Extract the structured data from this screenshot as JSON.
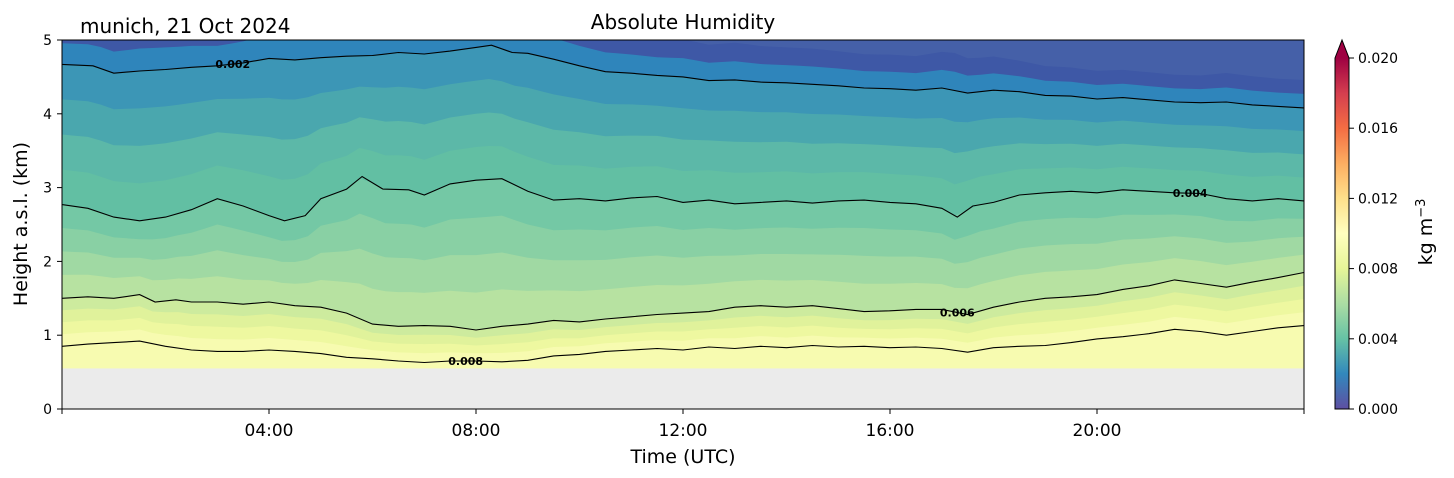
{
  "chart_data": {
    "type": "heatmap",
    "title": "Absolute Humidity",
    "subtitle": "munich, 21 Oct 2024",
    "xlabel": "Time (UTC)",
    "ylabel": "Height a.s.l. (km)",
    "xlim_hours": [
      0,
      24
    ],
    "ylim": [
      0,
      5
    ],
    "x_ticks": [
      {
        "hour": 4,
        "label": "04:00"
      },
      {
        "hour": 8,
        "label": "08:00"
      },
      {
        "hour": 12,
        "label": "12:00"
      },
      {
        "hour": 16,
        "label": "16:00"
      },
      {
        "hour": 20,
        "label": "20:00"
      }
    ],
    "y_ticks": [
      {
        "value": 0,
        "label": "0"
      },
      {
        "value": 1,
        "label": "1"
      },
      {
        "value": 2,
        "label": "2"
      },
      {
        "value": 3,
        "label": "3"
      },
      {
        "value": 4,
        "label": "4"
      },
      {
        "value": 5,
        "label": "5"
      }
    ],
    "no_data_below_km": 0.55,
    "colorbar": {
      "label": "kg m",
      "label_exponent": "−3",
      "range": [
        0.0,
        0.02
      ],
      "extend": "max",
      "ticks": [
        {
          "value": 0.0,
          "label": "0.000"
        },
        {
          "value": 0.004,
          "label": "0.004"
        },
        {
          "value": 0.008,
          "label": "0.008"
        },
        {
          "value": 0.012,
          "label": "0.012"
        },
        {
          "value": 0.016,
          "label": "0.016"
        },
        {
          "value": 0.02,
          "label": "0.020"
        }
      ]
    },
    "contours": [
      {
        "level": 0.002,
        "label": "0.002",
        "label_at_hour": 3.3,
        "points": [
          [
            0,
            4.67
          ],
          [
            0.6,
            4.65
          ],
          [
            1.0,
            4.55
          ],
          [
            1.5,
            4.58
          ],
          [
            2.0,
            4.6
          ],
          [
            2.5,
            4.63
          ],
          [
            3.0,
            4.65
          ],
          [
            3.5,
            4.69
          ],
          [
            4.0,
            4.75
          ],
          [
            4.5,
            4.73
          ],
          [
            5.0,
            4.76
          ],
          [
            5.5,
            4.78
          ],
          [
            6.0,
            4.79
          ],
          [
            6.5,
            4.83
          ],
          [
            7.0,
            4.81
          ],
          [
            7.5,
            4.85
          ],
          [
            8.0,
            4.9
          ],
          [
            8.3,
            4.93
          ],
          [
            8.7,
            4.83
          ],
          [
            9.0,
            4.82
          ],
          [
            9.5,
            4.74
          ],
          [
            10.0,
            4.65
          ],
          [
            10.5,
            4.57
          ],
          [
            11.0,
            4.55
          ],
          [
            11.5,
            4.52
          ],
          [
            12.0,
            4.5
          ],
          [
            12.5,
            4.45
          ],
          [
            13.0,
            4.46
          ],
          [
            13.5,
            4.43
          ],
          [
            14.0,
            4.42
          ],
          [
            14.5,
            4.4
          ],
          [
            15.0,
            4.38
          ],
          [
            15.5,
            4.35
          ],
          [
            16.0,
            4.34
          ],
          [
            16.5,
            4.32
          ],
          [
            17.0,
            4.35
          ],
          [
            17.5,
            4.28
          ],
          [
            18.0,
            4.32
          ],
          [
            18.5,
            4.3
          ],
          [
            19.0,
            4.25
          ],
          [
            19.5,
            4.24
          ],
          [
            20.0,
            4.2
          ],
          [
            20.5,
            4.22
          ],
          [
            21.0,
            4.19
          ],
          [
            21.5,
            4.16
          ],
          [
            22.0,
            4.15
          ],
          [
            22.5,
            4.16
          ],
          [
            23.0,
            4.12
          ],
          [
            23.5,
            4.1
          ],
          [
            24.0,
            4.08
          ]
        ]
      },
      {
        "level": 0.004,
        "label": "0.004",
        "label_at_hour": 21.8,
        "points": [
          [
            0,
            2.77
          ],
          [
            0.5,
            2.72
          ],
          [
            1.0,
            2.6
          ],
          [
            1.5,
            2.55
          ],
          [
            2.0,
            2.6
          ],
          [
            2.5,
            2.7
          ],
          [
            3.0,
            2.85
          ],
          [
            3.5,
            2.75
          ],
          [
            4.0,
            2.62
          ],
          [
            4.3,
            2.55
          ],
          [
            4.7,
            2.62
          ],
          [
            5.0,
            2.85
          ],
          [
            5.5,
            2.98
          ],
          [
            5.8,
            3.15
          ],
          [
            6.2,
            2.98
          ],
          [
            6.7,
            2.97
          ],
          [
            7.0,
            2.9
          ],
          [
            7.5,
            3.05
          ],
          [
            8.0,
            3.1
          ],
          [
            8.5,
            3.12
          ],
          [
            9.0,
            2.95
          ],
          [
            9.5,
            2.83
          ],
          [
            10.0,
            2.85
          ],
          [
            10.5,
            2.82
          ],
          [
            11.0,
            2.86
          ],
          [
            11.5,
            2.88
          ],
          [
            12.0,
            2.8
          ],
          [
            12.5,
            2.83
          ],
          [
            13.0,
            2.78
          ],
          [
            13.5,
            2.8
          ],
          [
            14.0,
            2.82
          ],
          [
            14.5,
            2.79
          ],
          [
            15.0,
            2.82
          ],
          [
            15.5,
            2.83
          ],
          [
            16.0,
            2.8
          ],
          [
            16.5,
            2.78
          ],
          [
            17.0,
            2.72
          ],
          [
            17.3,
            2.6
          ],
          [
            17.6,
            2.75
          ],
          [
            18.0,
            2.8
          ],
          [
            18.5,
            2.9
          ],
          [
            19.0,
            2.93
          ],
          [
            19.5,
            2.95
          ],
          [
            20.0,
            2.93
          ],
          [
            20.5,
            2.97
          ],
          [
            21.0,
            2.95
          ],
          [
            21.5,
            2.93
          ],
          [
            22.0,
            2.92
          ],
          [
            22.5,
            2.85
          ],
          [
            23.0,
            2.82
          ],
          [
            23.5,
            2.85
          ],
          [
            24.0,
            2.82
          ]
        ]
      },
      {
        "level": 0.006,
        "label": "0.006",
        "label_at_hour": 17.3,
        "points": [
          [
            0,
            1.5
          ],
          [
            0.5,
            1.52
          ],
          [
            1.0,
            1.5
          ],
          [
            1.5,
            1.55
          ],
          [
            1.8,
            1.45
          ],
          [
            2.2,
            1.48
          ],
          [
            2.5,
            1.45
          ],
          [
            3.0,
            1.45
          ],
          [
            3.5,
            1.42
          ],
          [
            4.0,
            1.45
          ],
          [
            4.5,
            1.4
          ],
          [
            5.0,
            1.38
          ],
          [
            5.5,
            1.3
          ],
          [
            6.0,
            1.15
          ],
          [
            6.5,
            1.12
          ],
          [
            7.0,
            1.13
          ],
          [
            7.5,
            1.12
          ],
          [
            8.0,
            1.07
          ],
          [
            8.5,
            1.12
          ],
          [
            9.0,
            1.15
          ],
          [
            9.5,
            1.2
          ],
          [
            10.0,
            1.18
          ],
          [
            10.5,
            1.22
          ],
          [
            11.0,
            1.25
          ],
          [
            11.5,
            1.28
          ],
          [
            12.0,
            1.3
          ],
          [
            12.5,
            1.32
          ],
          [
            13.0,
            1.38
          ],
          [
            13.5,
            1.4
          ],
          [
            14.0,
            1.38
          ],
          [
            14.5,
            1.4
          ],
          [
            15.0,
            1.36
          ],
          [
            15.5,
            1.32
          ],
          [
            16.0,
            1.33
          ],
          [
            16.5,
            1.35
          ],
          [
            17.0,
            1.35
          ],
          [
            17.5,
            1.28
          ],
          [
            18.0,
            1.38
          ],
          [
            18.5,
            1.45
          ],
          [
            19.0,
            1.5
          ],
          [
            19.5,
            1.52
          ],
          [
            20.0,
            1.55
          ],
          [
            20.5,
            1.62
          ],
          [
            21.0,
            1.67
          ],
          [
            21.5,
            1.75
          ],
          [
            22.0,
            1.7
          ],
          [
            22.5,
            1.65
          ],
          [
            23.0,
            1.72
          ],
          [
            23.5,
            1.78
          ],
          [
            24.0,
            1.85
          ]
        ]
      },
      {
        "level": 0.008,
        "label": "0.008",
        "label_at_hour": 7.8,
        "points": [
          [
            0,
            0.85
          ],
          [
            0.5,
            0.88
          ],
          [
            1.0,
            0.9
          ],
          [
            1.5,
            0.92
          ],
          [
            2.0,
            0.85
          ],
          [
            2.5,
            0.8
          ],
          [
            3.0,
            0.78
          ],
          [
            3.5,
            0.78
          ],
          [
            4.0,
            0.8
          ],
          [
            4.5,
            0.78
          ],
          [
            5.0,
            0.75
          ],
          [
            5.5,
            0.7
          ],
          [
            6.0,
            0.68
          ],
          [
            6.5,
            0.65
          ],
          [
            7.0,
            0.63
          ],
          [
            7.5,
            0.65
          ],
          [
            8.0,
            0.65
          ],
          [
            8.5,
            0.64
          ],
          [
            9.0,
            0.66
          ],
          [
            9.5,
            0.72
          ],
          [
            10.0,
            0.74
          ],
          [
            10.5,
            0.78
          ],
          [
            11.0,
            0.8
          ],
          [
            11.5,
            0.82
          ],
          [
            12.0,
            0.8
          ],
          [
            12.5,
            0.84
          ],
          [
            13.0,
            0.82
          ],
          [
            13.5,
            0.85
          ],
          [
            14.0,
            0.83
          ],
          [
            14.5,
            0.86
          ],
          [
            15.0,
            0.84
          ],
          [
            15.5,
            0.85
          ],
          [
            16.0,
            0.83
          ],
          [
            16.5,
            0.84
          ],
          [
            17.0,
            0.82
          ],
          [
            17.5,
            0.77
          ],
          [
            18.0,
            0.83
          ],
          [
            18.5,
            0.85
          ],
          [
            19.0,
            0.86
          ],
          [
            19.5,
            0.9
          ],
          [
            20.0,
            0.95
          ],
          [
            20.5,
            0.98
          ],
          [
            21.0,
            1.02
          ],
          [
            21.5,
            1.08
          ],
          [
            22.0,
            1.05
          ],
          [
            22.5,
            1.0
          ],
          [
            23.0,
            1.05
          ],
          [
            23.5,
            1.1
          ],
          [
            24.0,
            1.13
          ]
        ]
      }
    ]
  }
}
